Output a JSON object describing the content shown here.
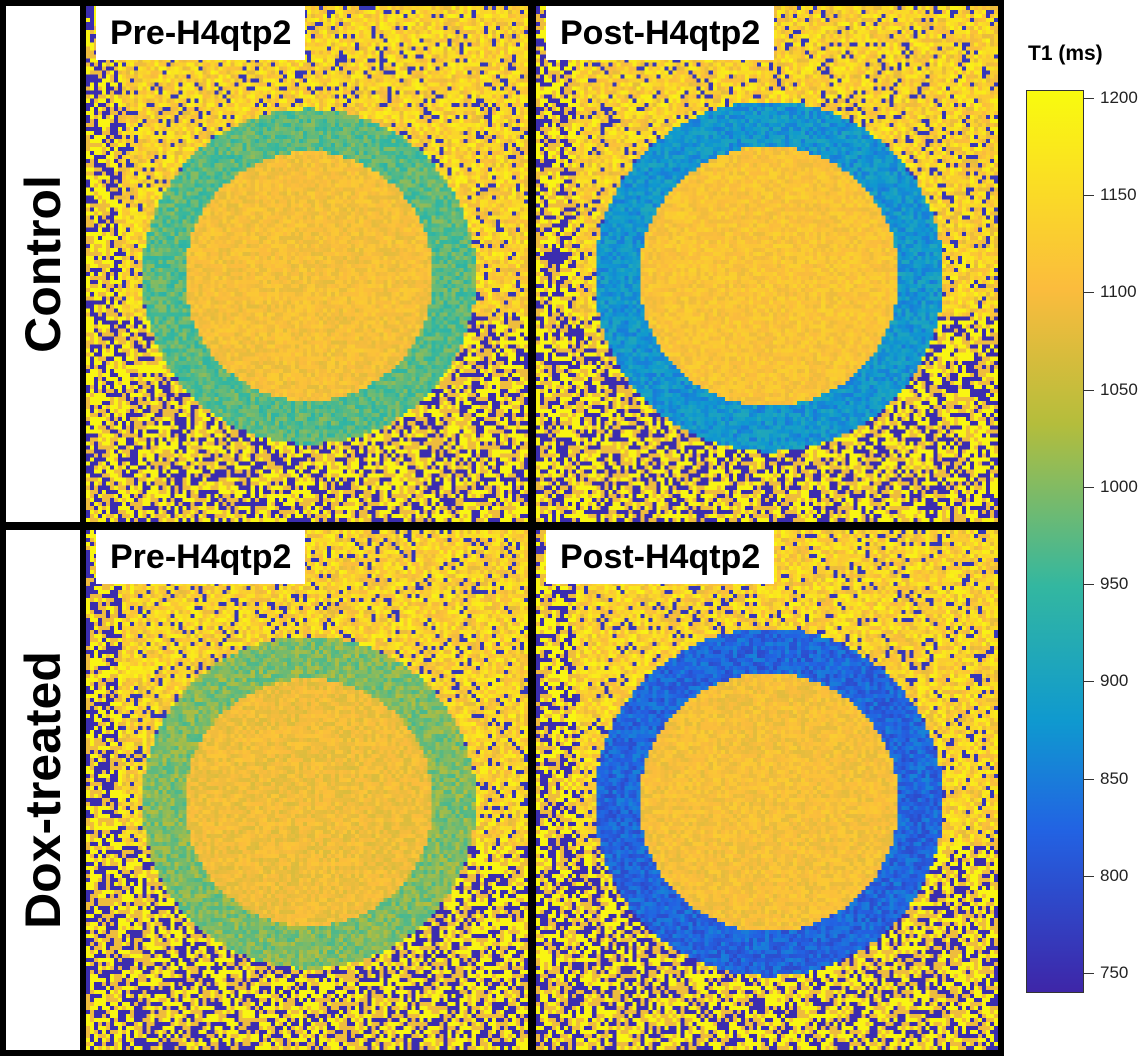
{
  "figure": {
    "rows": [
      {
        "label": "Control",
        "panels": [
          "Pre-H4qtp2",
          "Post-H4qtp2"
        ]
      },
      {
        "label": "Dox-treated",
        "panels": [
          "Pre-H4qtp2",
          "Post-H4qtp2"
        ]
      }
    ]
  },
  "colorbar": {
    "title": "T1 (ms)",
    "ticks": [
      "1200",
      "1150",
      "1100",
      "1050",
      "1000",
      "950",
      "900",
      "850",
      "800",
      "750"
    ]
  },
  "colors": {
    "high": "#f9fb0e",
    "mid_high": "#fbbc3d",
    "mid": "#33b7a0",
    "low": "#3e26a8"
  }
}
